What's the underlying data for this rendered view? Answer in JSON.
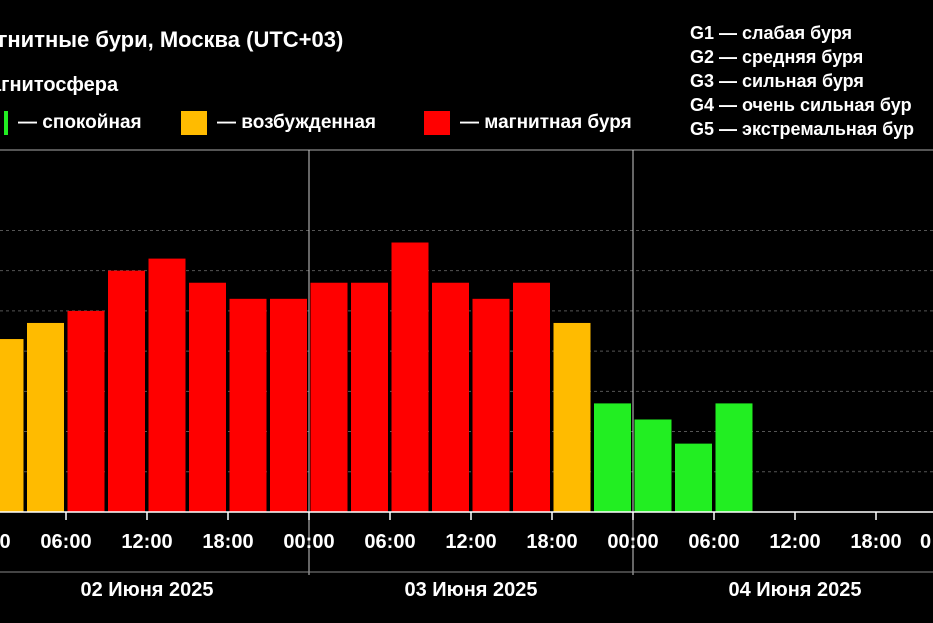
{
  "title": "агнитные бури, Москва (UTC+03)",
  "subtitle": "агнитосфера",
  "legend": [
    {
      "label": "— спокойная",
      "color": "#22ee22"
    },
    {
      "label": "— возбужденная",
      "color": "#ffbb00"
    },
    {
      "label": "— магнитная буря",
      "color": "#ff0000"
    }
  ],
  "scale": [
    "G1 — слабая буря",
    "G2 — средняя буря",
    "G3 — сильная буря",
    "G4 — очень сильная бур",
    "G5 — экстремальная бур"
  ],
  "colors": {
    "quiet": "#22ee22",
    "excited": "#ffbb00",
    "storm": "#ff0000"
  },
  "chart_data": {
    "type": "bar",
    "x_ticks": [
      "00:00",
      "06:00",
      "12:00",
      "18:00",
      "00:00",
      "06:00",
      "12:00",
      "18:00",
      "00:00",
      "06:00",
      "12:00",
      "18:00",
      "0"
    ],
    "dates": [
      "02 Июня 2025",
      "03 Июня 2025",
      "04 Июня 2025"
    ],
    "categories": [
      "02 Июня 00:00",
      "02 Июня 03:00",
      "02 Июня 06:00",
      "02 Июня 09:00",
      "02 Июня 12:00",
      "02 Июня 15:00",
      "02 Июня 18:00",
      "02 Июня 21:00",
      "03 Июня 00:00",
      "03 Июня 03:00",
      "03 Июня 06:00",
      "03 Июня 09:00",
      "03 Июня 12:00",
      "03 Июня 15:00",
      "03 Июня 18:00",
      "03 Июня 21:00",
      "04 Июня 00:00",
      "04 Июня 03:00",
      "04 Июня 06:00"
    ],
    "values": [
      4.3,
      4.7,
      5.0,
      6.0,
      6.3,
      5.7,
      5.3,
      5.3,
      5.7,
      5.7,
      6.7,
      5.7,
      5.3,
      5.7,
      4.7,
      2.7,
      2.3,
      1.7,
      2.7
    ],
    "levels": [
      "excited",
      "excited",
      "storm",
      "storm",
      "storm",
      "storm",
      "storm",
      "storm",
      "storm",
      "storm",
      "storm",
      "storm",
      "storm",
      "storm",
      "excited",
      "quiet",
      "quiet",
      "quiet",
      "quiet"
    ],
    "ylim": [
      0,
      9
    ],
    "grid": true
  }
}
